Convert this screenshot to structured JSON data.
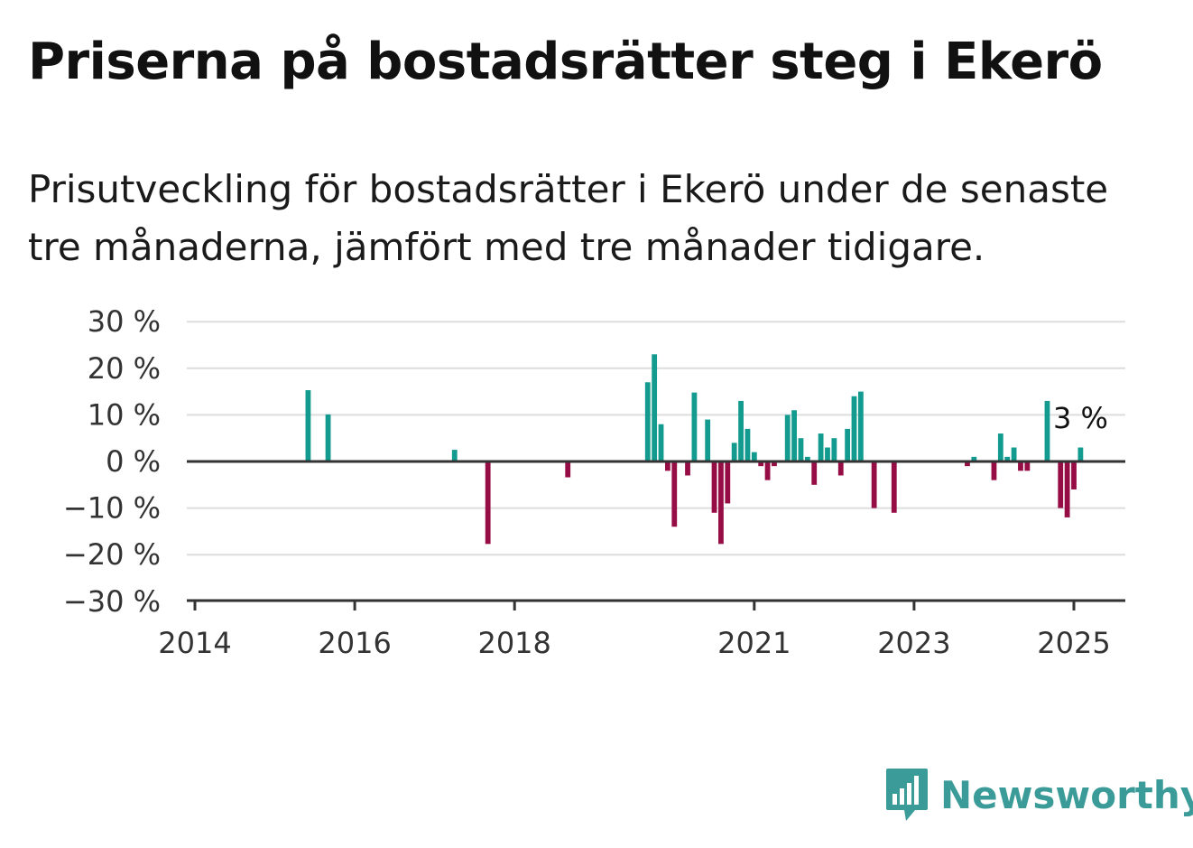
{
  "header": {
    "title": "Priserna på bostadsrätter steg i Ekerö",
    "subtitle": "Prisutveckling för bostadsrätter i Ekerö under de senaste tre månaderna, jämfört med tre månader tidigare."
  },
  "colors": {
    "positive": "#139b8f",
    "negative": "#960c45",
    "grid": "#dddddd",
    "axis": "#333333",
    "brand": "#3a9b98"
  },
  "brand": {
    "name": "Newsworthy",
    "icon": "bar-chart-speech-icon"
  },
  "chart_data": {
    "type": "bar",
    "title": "",
    "xlabel": "",
    "ylabel": "",
    "ylim": [
      -30,
      30
    ],
    "y_ticks": [
      "30 %",
      "20 %",
      "10 %",
      "0 %",
      "−10 %",
      "−20 %",
      "−30 %"
    ],
    "y_tick_values": [
      30,
      20,
      10,
      0,
      -10,
      -20,
      -30
    ],
    "x_ticks": [
      "2014",
      "2016",
      "2018",
      "2021",
      "2023",
      "2025"
    ],
    "x_tick_values": [
      "2014-01",
      "2016-01",
      "2018-01",
      "2021-01",
      "2023-01",
      "2025-01"
    ],
    "xlim": [
      "2014-01",
      "2025-07"
    ],
    "grid": true,
    "annotation": "3 %",
    "series": [
      {
        "values": [
          [
            "2015-06",
            15.3
          ],
          [
            "2015-09",
            10.1
          ],
          [
            "2017-04",
            2.5
          ],
          [
            "2017-09",
            -17.7
          ],
          [
            "2018-09",
            -3.4
          ],
          [
            "2019-09",
            17
          ],
          [
            "2019-10",
            23
          ],
          [
            "2019-11",
            8
          ],
          [
            "2019-12",
            -2
          ],
          [
            "2020-01",
            -14
          ],
          [
            "2020-03",
            -3
          ],
          [
            "2020-04",
            14.8
          ],
          [
            "2020-06",
            9
          ],
          [
            "2020-07",
            -11
          ],
          [
            "2020-08",
            -17.7
          ],
          [
            "2020-09",
            -9
          ],
          [
            "2020-10",
            4
          ],
          [
            "2020-11",
            13
          ],
          [
            "2020-12",
            7
          ],
          [
            "2021-01",
            2
          ],
          [
            "2021-02",
            -1
          ],
          [
            "2021-03",
            -4
          ],
          [
            "2021-04",
            -1
          ],
          [
            "2021-06",
            10
          ],
          [
            "2021-07",
            11
          ],
          [
            "2021-08",
            5
          ],
          [
            "2021-09",
            1
          ],
          [
            "2021-10",
            -5
          ],
          [
            "2021-11",
            6
          ],
          [
            "2021-12",
            3
          ],
          [
            "2022-01",
            5
          ],
          [
            "2022-02",
            -3
          ],
          [
            "2022-03",
            7
          ],
          [
            "2022-04",
            14
          ],
          [
            "2022-05",
            15
          ],
          [
            "2022-07",
            -10
          ],
          [
            "2022-10",
            -11
          ],
          [
            "2023-09",
            -1
          ],
          [
            "2023-10",
            1
          ],
          [
            "2024-01",
            -4
          ],
          [
            "2024-02",
            6
          ],
          [
            "2024-03",
            1
          ],
          [
            "2024-04",
            3
          ],
          [
            "2024-05",
            -2
          ],
          [
            "2024-06",
            -2
          ],
          [
            "2024-09",
            13
          ],
          [
            "2024-11",
            -10
          ],
          [
            "2024-12",
            -12
          ],
          [
            "2025-01",
            -6
          ],
          [
            "2025-02",
            3
          ]
        ]
      }
    ]
  }
}
